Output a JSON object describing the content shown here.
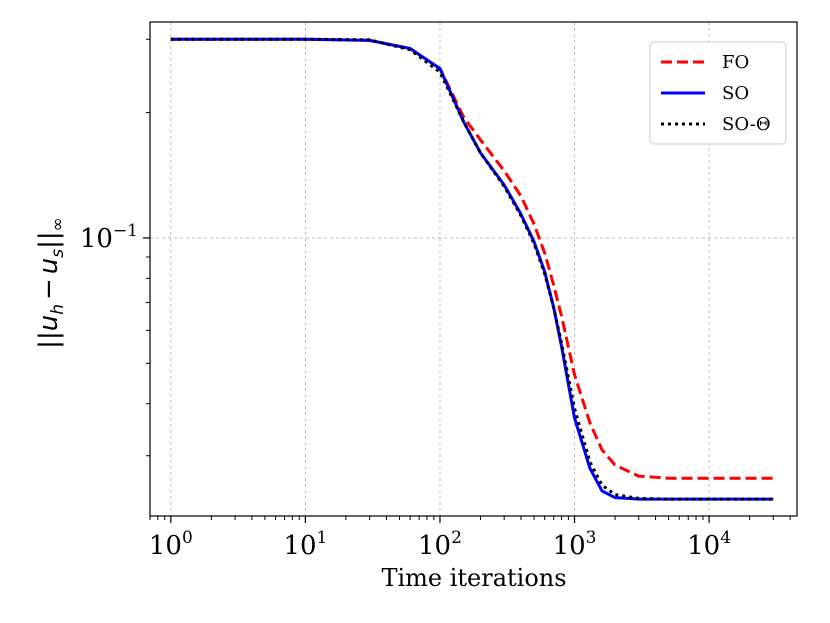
{
  "chart_data": {
    "type": "line",
    "x_scale": "log",
    "y_scale": "log",
    "xlabel": "Time iterations",
    "ylabel": "||u_h − u_s||_∞",
    "ylabel_parts": {
      "bars": "||",
      "u": "u",
      "h": "h",
      "minus": "−",
      "s": "s",
      "inf": "∞"
    },
    "xlim": [
      0.7,
      45000
    ],
    "ylim": [
      0.0215,
      0.33
    ],
    "x_ticks": [
      {
        "value": 1,
        "base": "10",
        "exp": "0"
      },
      {
        "value": 10,
        "base": "10",
        "exp": "1"
      },
      {
        "value": 100,
        "base": "10",
        "exp": "2"
      },
      {
        "value": 1000,
        "base": "10",
        "exp": "3"
      },
      {
        "value": 10000,
        "base": "10",
        "exp": "4"
      }
    ],
    "y_ticks": [
      {
        "value": 0.1,
        "base": "10",
        "exp": "−1"
      }
    ],
    "grid": true,
    "legend_position": "top-right",
    "colors": {
      "FO": "#ff0000",
      "SO": "#0000ff",
      "SO-Θ": "#000000"
    },
    "series": [
      {
        "name": "FO",
        "style": "dashed",
        "color": "#ff0000",
        "x": [
          1,
          10,
          30,
          60,
          100,
          150,
          200,
          300,
          400,
          500,
          600,
          700,
          800,
          1000,
          1300,
          1600,
          2000,
          3000,
          5000,
          10000,
          30000
        ],
        "y": [
          0.3,
          0.3,
          0.298,
          0.285,
          0.255,
          0.195,
          0.172,
          0.145,
          0.126,
          0.108,
          0.092,
          0.077,
          0.065,
          0.047,
          0.036,
          0.031,
          0.0285,
          0.0268,
          0.0265,
          0.0265,
          0.0265
        ]
      },
      {
        "name": "SO",
        "style": "solid",
        "color": "#0000ff",
        "x": [
          1,
          10,
          30,
          60,
          100,
          150,
          200,
          300,
          400,
          500,
          600,
          700,
          800,
          1000,
          1300,
          1600,
          2000,
          3000,
          5000,
          10000,
          30000
        ],
        "y": [
          0.3,
          0.3,
          0.298,
          0.285,
          0.255,
          0.19,
          0.16,
          0.134,
          0.114,
          0.098,
          0.083,
          0.068,
          0.055,
          0.037,
          0.028,
          0.0247,
          0.0238,
          0.0236,
          0.0236,
          0.0236,
          0.0236
        ]
      },
      {
        "name": "SO-Θ",
        "style": "dotted",
        "color": "#000000",
        "x": [
          1,
          10,
          30,
          60,
          100,
          150,
          200,
          300,
          400,
          500,
          600,
          700,
          800,
          1000,
          1300,
          1600,
          2000,
          3000,
          5000,
          10000,
          30000
        ],
        "y": [
          0.3,
          0.3,
          0.299,
          0.283,
          0.25,
          0.19,
          0.16,
          0.133,
          0.113,
          0.097,
          0.082,
          0.068,
          0.056,
          0.039,
          0.029,
          0.0255,
          0.0242,
          0.0237,
          0.0236,
          0.0236,
          0.0236
        ]
      }
    ]
  }
}
